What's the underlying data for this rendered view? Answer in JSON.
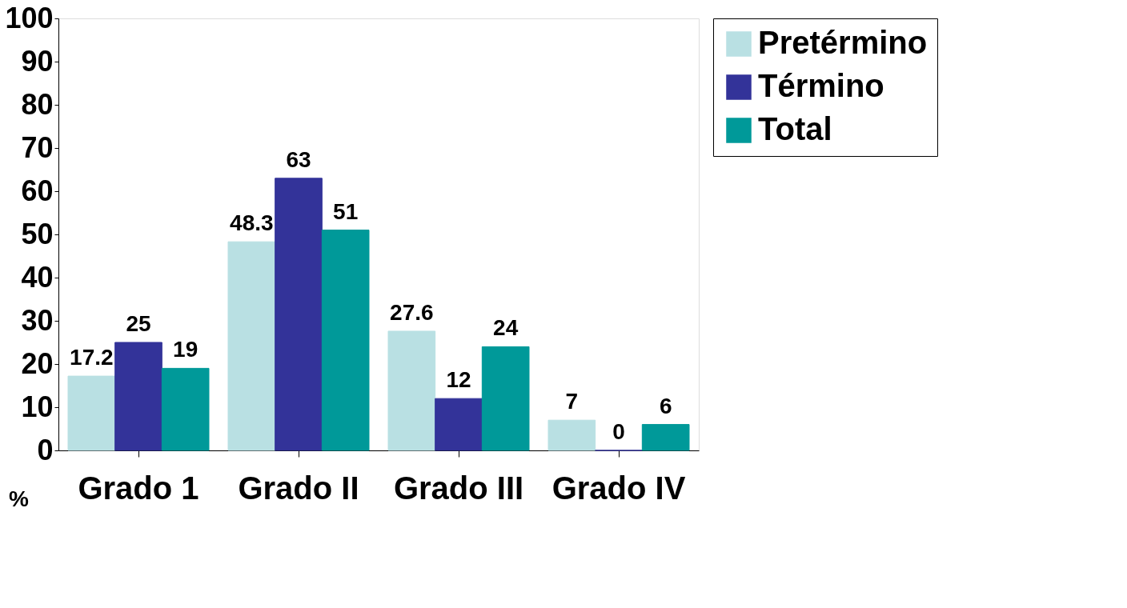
{
  "chart_data": {
    "type": "bar",
    "ylabel": "%",
    "categories": [
      "Grado 1",
      "Grado II",
      "Grado III",
      "Grado IV"
    ],
    "series": [
      {
        "name": "Pretérmino",
        "color": "#b9e0e3",
        "values": [
          17.2,
          48.3,
          27.6,
          7
        ]
      },
      {
        "name": "Término",
        "color": "#333399",
        "values": [
          25,
          63,
          12,
          0
        ]
      },
      {
        "name": "Total",
        "color": "#009999",
        "values": [
          19,
          51,
          24,
          6
        ]
      }
    ],
    "ylim": [
      0,
      100
    ],
    "yticks": [
      0,
      10,
      20,
      30,
      40,
      50,
      60,
      70,
      80,
      90,
      100
    ],
    "data_labels": true,
    "grid": false,
    "legend": "right"
  }
}
